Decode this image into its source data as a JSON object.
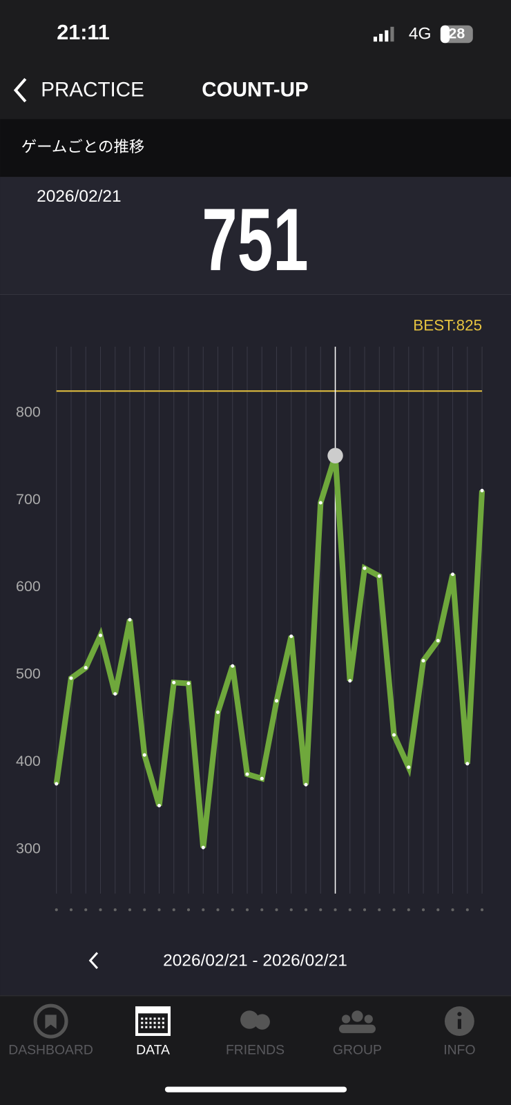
{
  "status_bar": {
    "time": "21:11",
    "network": "4G",
    "battery": "28"
  },
  "header": {
    "back": "PRACTICE",
    "title": "COUNT-UP"
  },
  "section_title": "ゲームごとの推移",
  "selected_date": "2026/02/21",
  "chart_data": {
    "type": "line",
    "values": [
      375,
      496,
      508,
      545,
      478,
      563,
      408,
      350,
      491,
      490,
      302,
      457,
      510,
      386,
      381,
      470,
      544,
      374,
      697,
      751,
      493,
      622,
      613,
      431,
      394,
      516,
      539,
      615,
      398,
      711
    ],
    "color": "#6fa83c",
    "ylim": [
      250,
      875
    ],
    "yticks": [
      300,
      400,
      500,
      600,
      700,
      800
    ],
    "grid": true,
    "best": 825,
    "best_label": "BEST:825",
    "best_color": "#e6c340",
    "selected_index": 19
  },
  "date_range": "2026/02/21 - 2026/02/21",
  "nav": [
    "DASHBOARD",
    "DATA",
    "FRIENDS",
    "GROUP",
    "INFO"
  ],
  "nav_active": 1
}
